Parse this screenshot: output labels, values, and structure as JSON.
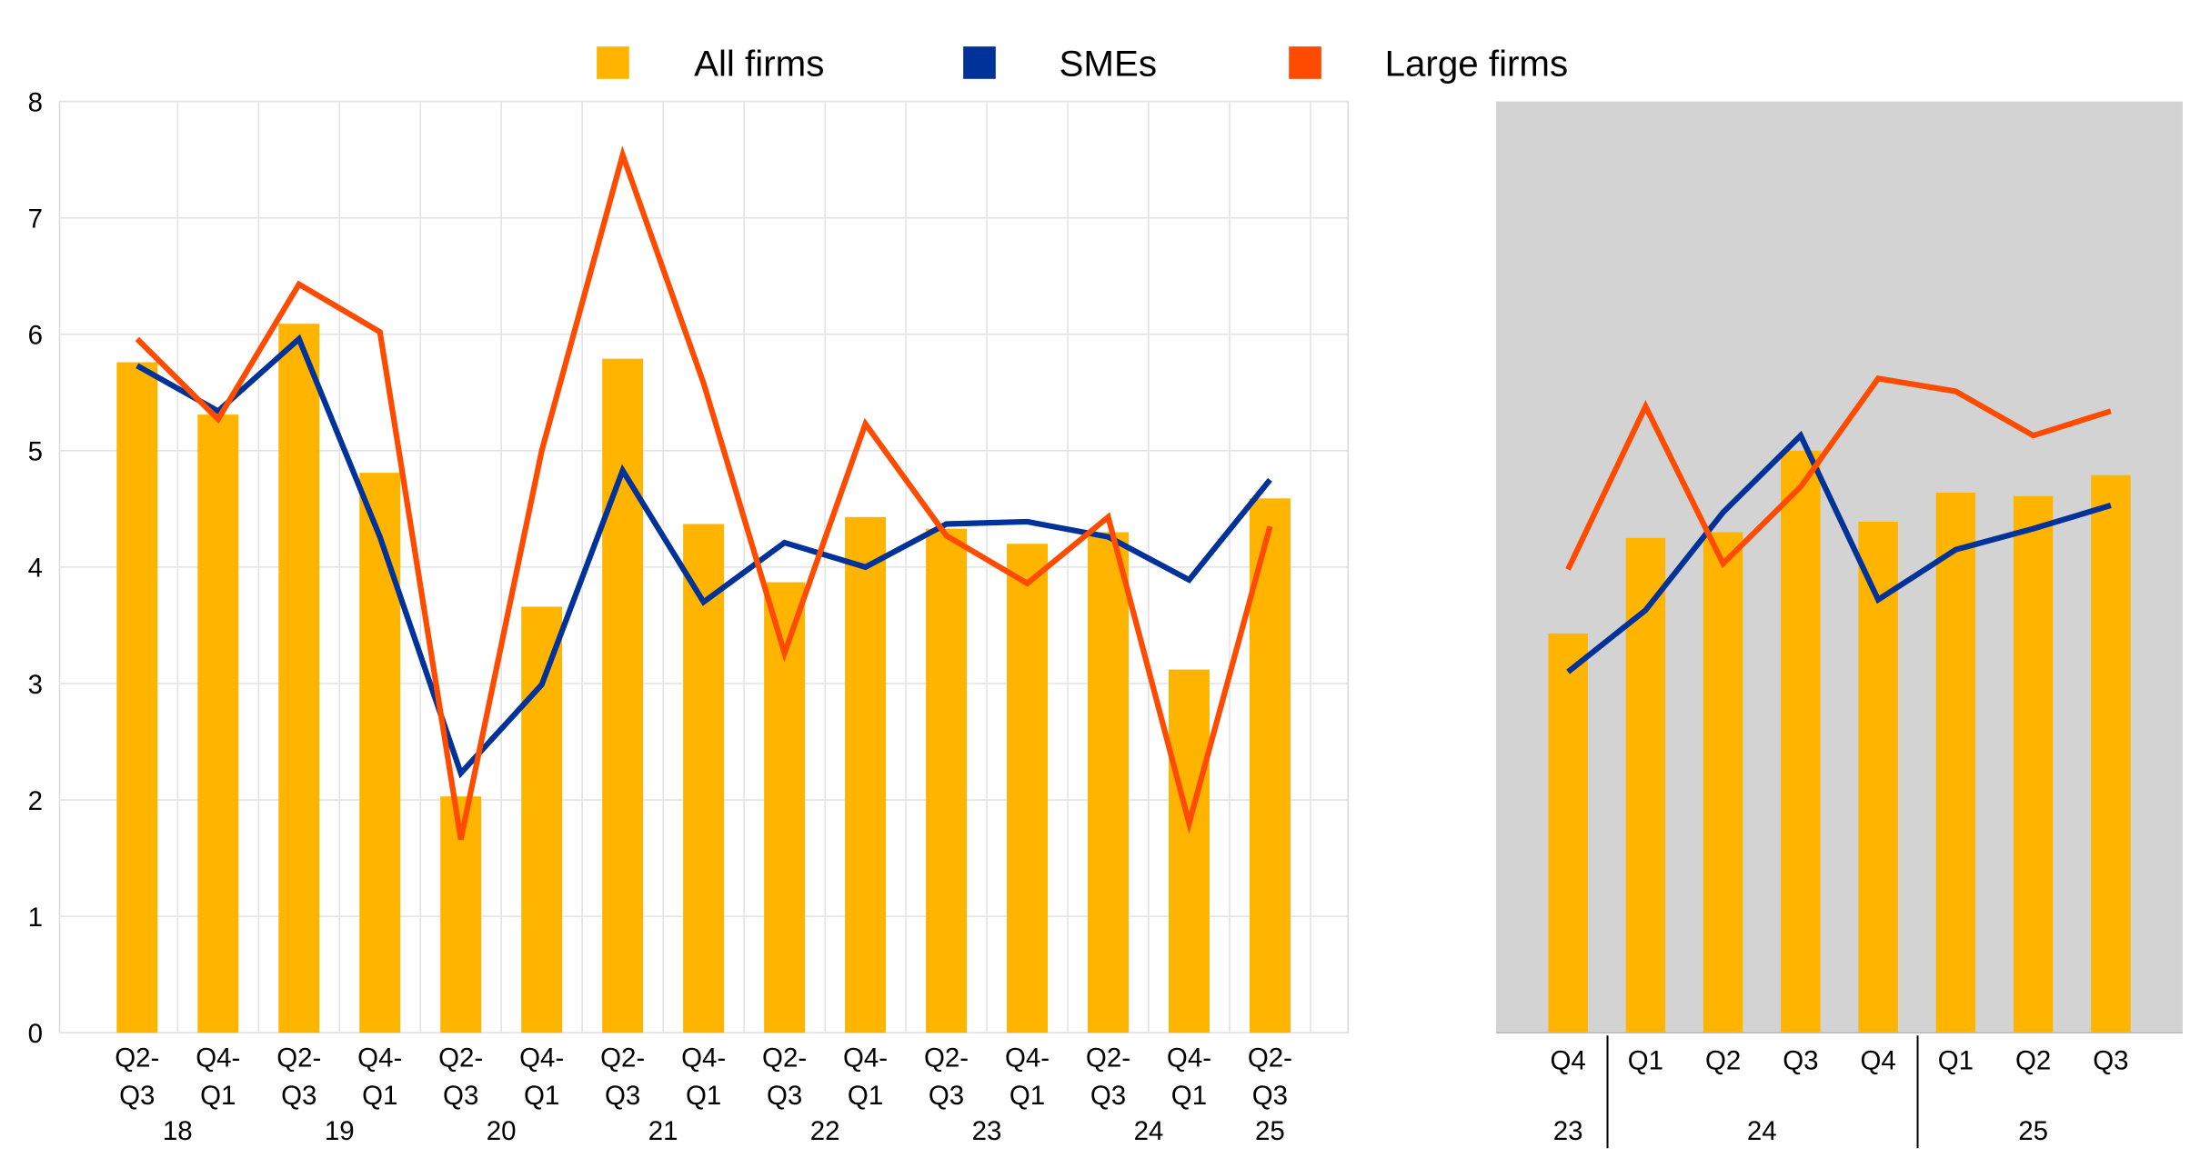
{
  "chart_data": [
    {
      "type": "bar+line",
      "title": "",
      "ylim": [
        0,
        8
      ],
      "yticks": [
        "0",
        "1",
        "2",
        "3",
        "4",
        "5",
        "6",
        "7",
        "8"
      ],
      "grid": true,
      "legend_position": "top-center",
      "categories": [
        {
          "q1": "Q2-",
          "q2": "Q3",
          "year": "18"
        },
        {
          "q1": "Q4-",
          "q2": "Q1",
          "year": ""
        },
        {
          "q1": "Q2-",
          "q2": "Q3",
          "year": "19"
        },
        {
          "q1": "Q4-",
          "q2": "Q1",
          "year": ""
        },
        {
          "q1": "Q2-",
          "q2": "Q3",
          "year": "20"
        },
        {
          "q1": "Q4-",
          "q2": "Q1",
          "year": ""
        },
        {
          "q1": "Q2-",
          "q2": "Q3",
          "year": "21"
        },
        {
          "q1": "Q4-",
          "q2": "Q1",
          "year": ""
        },
        {
          "q1": "Q2-",
          "q2": "Q3",
          "year": "22"
        },
        {
          "q1": "Q4-",
          "q2": "Q1",
          "year": ""
        },
        {
          "q1": "Q2-",
          "q2": "Q3",
          "year": "23"
        },
        {
          "q1": "Q4-",
          "q2": "Q1",
          "year": ""
        },
        {
          "q1": "Q2-",
          "q2": "Q3",
          "year": "24"
        },
        {
          "q1": "Q4-",
          "q2": "Q1",
          "year": ""
        },
        {
          "q1": "Q2-",
          "q2": "Q3",
          "year": "25"
        }
      ],
      "series": [
        {
          "name": "All firms",
          "type": "bar",
          "color": "#FFB400",
          "values": [
            5.76,
            5.31,
            6.09,
            4.81,
            2.03,
            3.66,
            5.79,
            4.37,
            3.87,
            4.43,
            4.33,
            4.2,
            4.3,
            3.12,
            4.59
          ]
        },
        {
          "name": "SMEs",
          "type": "line",
          "color": "#003299",
          "values": [
            5.73,
            5.34,
            5.96,
            4.26,
            2.23,
            2.99,
            4.83,
            3.7,
            4.21,
            4.0,
            4.37,
            4.39,
            4.26,
            3.89,
            4.75
          ]
        },
        {
          "name": "Large firms",
          "type": "line",
          "color": "#FF4B00",
          "values": [
            5.96,
            5.27,
            6.43,
            6.02,
            1.66,
            5.0,
            7.54,
            5.58,
            3.26,
            5.23,
            4.27,
            3.86,
            4.43,
            1.8,
            4.35
          ]
        }
      ]
    },
    {
      "type": "bar+line",
      "ylim": [
        0,
        8
      ],
      "background": "#D3D3D3",
      "categories": [
        "Q4",
        "Q1",
        "Q2",
        "Q3",
        "Q4",
        "Q1",
        "Q2",
        "Q3"
      ],
      "years": [
        {
          "label": "23",
          "span": [
            0,
            0
          ]
        },
        {
          "label": "24",
          "span": [
            1,
            4
          ]
        },
        {
          "label": "25",
          "span": [
            5,
            7
          ]
        }
      ],
      "series": [
        {
          "name": "All firms",
          "type": "bar",
          "color": "#FFB400",
          "values": [
            3.43,
            4.25,
            4.3,
            5.0,
            4.39,
            4.64,
            4.61,
            4.79
          ]
        },
        {
          "name": "SMEs",
          "type": "line",
          "color": "#003299",
          "values": [
            3.1,
            3.63,
            4.47,
            5.13,
            3.72,
            4.15,
            4.33,
            4.53
          ]
        },
        {
          "name": "Large firms",
          "type": "line",
          "color": "#FF4B00",
          "values": [
            3.98,
            5.38,
            4.03,
            4.69,
            5.62,
            5.51,
            5.13,
            5.34
          ]
        }
      ]
    }
  ]
}
